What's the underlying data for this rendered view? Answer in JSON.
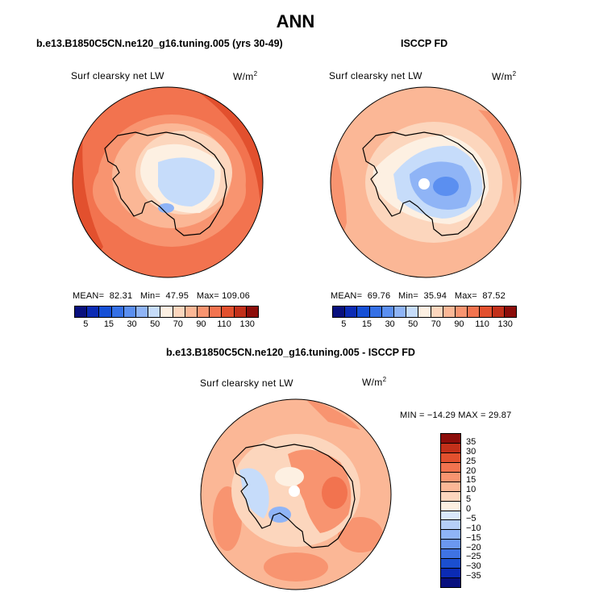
{
  "page_title": "ANN",
  "panels": {
    "model": {
      "case_title": "b.e13.B1850C5CN.ne120_g16.tuning.005 (yrs 30-49)",
      "variable": "Surf clearsky net LW",
      "units_base": "W/m",
      "units_exp": "2",
      "mean_label": "MEAN=",
      "mean_value": "82.31",
      "min_label": "Min=",
      "min_value": "47.95",
      "max_label": "Max=",
      "max_value": "109.06"
    },
    "obs": {
      "case_title": "ISCCP FD",
      "variable": "Surf clearsky net LW",
      "units_base": "W/m",
      "units_exp": "2",
      "mean_label": "MEAN=",
      "mean_value": "69.76",
      "min_label": "Min=",
      "min_value": "35.94",
      "max_label": "Max=",
      "max_value": "87.52"
    },
    "diff": {
      "case_title": "b.e13.B1850C5CN.ne120_g16.tuning.005 - ISCCP FD",
      "variable": "Surf clearsky net LW",
      "units_base": "W/m",
      "units_exp": "2",
      "minmax_text": "MIN = −14.29 MAX =  29.87"
    }
  },
  "chart_data": [
    {
      "type": "heatmap",
      "projection": "south-polar-stereographic",
      "title": "b.e13.B1850C5CN.ne120_g16.tuning.005 (yrs 30-49)",
      "variable": "Surf clearsky net LW",
      "units": "W/m^2",
      "mean": 82.31,
      "min": 47.95,
      "max": 109.06,
      "colorbar_levels": [
        5,
        10,
        15,
        20,
        30,
        40,
        50,
        60,
        70,
        80,
        90,
        100,
        110,
        120,
        130
      ],
      "colorbar_tick_labels": [
        "5",
        "15",
        "30",
        "50",
        "70",
        "90",
        "110",
        "130"
      ]
    },
    {
      "type": "heatmap",
      "projection": "south-polar-stereographic",
      "title": "ISCCP FD",
      "variable": "Surf clearsky net LW",
      "units": "W/m^2",
      "mean": 69.76,
      "min": 35.94,
      "max": 87.52,
      "colorbar_levels": [
        5,
        10,
        15,
        20,
        30,
        40,
        50,
        60,
        70,
        80,
        90,
        100,
        110,
        120,
        130
      ],
      "colorbar_tick_labels": [
        "5",
        "15",
        "30",
        "50",
        "70",
        "90",
        "110",
        "130"
      ]
    },
    {
      "type": "heatmap",
      "projection": "south-polar-stereographic",
      "title": "b.e13.B1850C5CN.ne120_g16.tuning.005 - ISCCP FD",
      "variable": "Surf clearsky net LW",
      "units": "W/m^2",
      "min": -14.29,
      "max": 29.87,
      "colorbar_levels": [
        35,
        30,
        25,
        20,
        15,
        10,
        5,
        0,
        -5,
        -10,
        -15,
        -20,
        -25,
        -30,
        -35
      ],
      "colorbar_tick_labels": [
        "35",
        "30",
        "25",
        "20",
        "15",
        "10",
        "5",
        "0",
        "−5",
        "−10",
        "−15",
        "−20",
        "−25",
        "−30",
        "−35"
      ]
    }
  ],
  "colors": {
    "abs_palette": [
      "#08107e",
      "#0b2bb4",
      "#1650d6",
      "#3570e6",
      "#5b8ff0",
      "#8fb4f6",
      "#c6dcfa",
      "#fdf0e2",
      "#fcd6bd",
      "#fbb796",
      "#f89470",
      "#f2734f",
      "#e2502e",
      "#c2301a",
      "#8c0d0a"
    ],
    "diff_palette": [
      "#8c0d0a",
      "#c2301a",
      "#e2502e",
      "#f2734f",
      "#f89470",
      "#fbb796",
      "#fcd6bd",
      "#fdf0e2",
      "#d9e8fb",
      "#b5cff8",
      "#8fb4f6",
      "#6b98f0",
      "#3f73e3",
      "#1b4fd0",
      "#0b2bb4",
      "#08107e"
    ]
  }
}
